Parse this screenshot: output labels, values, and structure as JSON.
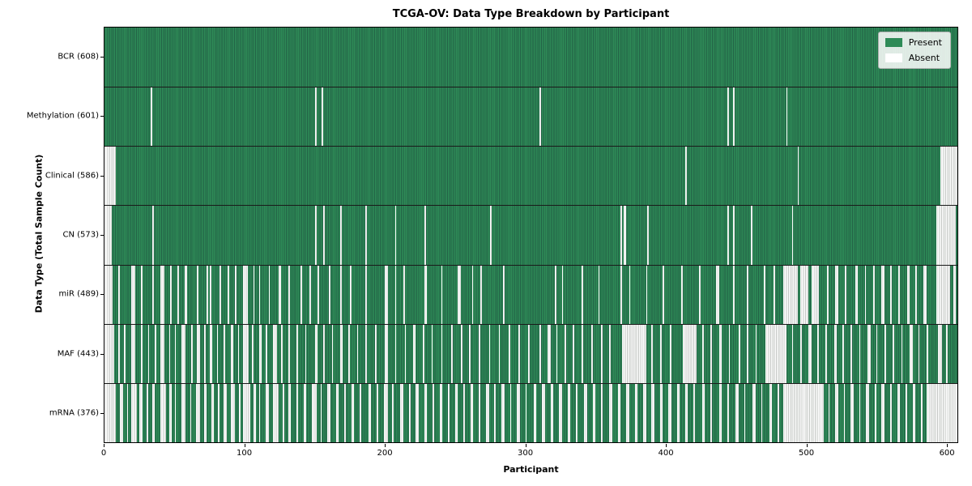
{
  "chart_data": {
    "type": "heatmap",
    "title": "TCGA-OV: Data Type Breakdown by Participant",
    "xlabel": "Participant",
    "ylabel": "Data Type (Total Sample Count)",
    "x_ticks": [
      0,
      100,
      200,
      300,
      400,
      500,
      600
    ],
    "xlim": [
      0,
      608
    ],
    "n_participants": 608,
    "legend": [
      {
        "label": "Present",
        "color": "#2e8b57"
      },
      {
        "label": "Absent",
        "color": "#ffffff"
      }
    ],
    "colors": {
      "present": "#2e8b57",
      "present_edge": "#226246",
      "absent": "#fcfcfc",
      "absent_edge": "#c4c7c4",
      "row_separator": "#1a1a1a"
    },
    "rows": [
      {
        "label": "BCR (608)",
        "data_type": "BCR",
        "present_count": 608,
        "absent_count": 0,
        "absent_ranges": []
      },
      {
        "label": "Methylation (601)",
        "data_type": "Methylation",
        "present_count": 601,
        "absent_count": 7,
        "absent_ranges": [
          [
            33,
            1
          ],
          [
            150,
            1
          ],
          [
            155,
            1
          ],
          [
            310,
            1
          ],
          [
            444,
            1
          ],
          [
            448,
            1
          ],
          [
            486,
            1
          ]
        ]
      },
      {
        "label": "Clinical (586)",
        "data_type": "Clinical",
        "present_count": 586,
        "absent_count": 22,
        "absent_ranges": [
          [
            0,
            8
          ],
          [
            414,
            1
          ],
          [
            494,
            1
          ],
          [
            596,
            12
          ]
        ]
      },
      {
        "label": "CN (573)",
        "data_type": "CN",
        "present_count": 573,
        "absent_count": 35,
        "absent_ranges": [
          [
            0,
            5
          ],
          [
            34,
            1
          ],
          [
            150,
            1
          ],
          [
            156,
            1
          ],
          [
            168,
            1
          ],
          [
            186,
            1
          ],
          [
            207,
            1
          ],
          [
            228,
            1
          ],
          [
            275,
            1
          ],
          [
            368,
            1
          ],
          [
            370,
            2
          ],
          [
            387,
            1
          ],
          [
            444,
            1
          ],
          [
            448,
            1
          ],
          [
            461,
            1
          ],
          [
            490,
            1
          ],
          [
            593,
            14
          ]
        ]
      },
      {
        "label": "miR (489)",
        "data_type": "miR",
        "present_count": 489,
        "absent_count": 119,
        "absent_ranges": [
          [
            0,
            6
          ],
          [
            10,
            1
          ],
          [
            19,
            3
          ],
          [
            26,
            1
          ],
          [
            34,
            1
          ],
          [
            40,
            3
          ],
          [
            47,
            1
          ],
          [
            52,
            1
          ],
          [
            57,
            2
          ],
          [
            66,
            1
          ],
          [
            73,
            1
          ],
          [
            75,
            1
          ],
          [
            82,
            1
          ],
          [
            88,
            1
          ],
          [
            93,
            1
          ],
          [
            99,
            3
          ],
          [
            106,
            1
          ],
          [
            110,
            1
          ],
          [
            117,
            1
          ],
          [
            124,
            2
          ],
          [
            131,
            1
          ],
          [
            140,
            1
          ],
          [
            146,
            1
          ],
          [
            152,
            1
          ],
          [
            160,
            1
          ],
          [
            168,
            1
          ],
          [
            175,
            1
          ],
          [
            186,
            1
          ],
          [
            200,
            2
          ],
          [
            207,
            1
          ],
          [
            213,
            1
          ],
          [
            228,
            2
          ],
          [
            240,
            1
          ],
          [
            252,
            2
          ],
          [
            262,
            1
          ],
          [
            268,
            1
          ],
          [
            284,
            1
          ],
          [
            321,
            1
          ],
          [
            326,
            1
          ],
          [
            340,
            1
          ],
          [
            352,
            1
          ],
          [
            368,
            1
          ],
          [
            374,
            1
          ],
          [
            386,
            1
          ],
          [
            398,
            1
          ],
          [
            411,
            1
          ],
          [
            424,
            1
          ],
          [
            436,
            2
          ],
          [
            448,
            1
          ],
          [
            458,
            1
          ],
          [
            470,
            1
          ],
          [
            477,
            1
          ],
          [
            484,
            10
          ],
          [
            496,
            6
          ],
          [
            504,
            5
          ],
          [
            515,
            1
          ],
          [
            521,
            2
          ],
          [
            528,
            1
          ],
          [
            535,
            2
          ],
          [
            542,
            1
          ],
          [
            548,
            1
          ],
          [
            554,
            2
          ],
          [
            560,
            1
          ],
          [
            566,
            1
          ],
          [
            572,
            2
          ],
          [
            578,
            1
          ],
          [
            584,
            2
          ],
          [
            593,
            10
          ],
          [
            605,
            2
          ]
        ]
      },
      {
        "label": "MAF (443)",
        "data_type": "MAF",
        "present_count": 443,
        "absent_count": 165,
        "absent_ranges": [
          [
            0,
            7
          ],
          [
            10,
            1
          ],
          [
            14,
            1
          ],
          [
            19,
            3
          ],
          [
            26,
            1
          ],
          [
            31,
            1
          ],
          [
            36,
            1
          ],
          [
            40,
            3
          ],
          [
            46,
            1
          ],
          [
            50,
            1
          ],
          [
            55,
            3
          ],
          [
            62,
            1
          ],
          [
            66,
            2
          ],
          [
            71,
            1
          ],
          [
            75,
            2
          ],
          [
            80,
            1
          ],
          [
            85,
            1
          ],
          [
            90,
            2
          ],
          [
            95,
            1
          ],
          [
            99,
            4
          ],
          [
            105,
            1
          ],
          [
            110,
            2
          ],
          [
            115,
            1
          ],
          [
            120,
            3
          ],
          [
            126,
            1
          ],
          [
            131,
            1
          ],
          [
            137,
            1
          ],
          [
            143,
            1
          ],
          [
            150,
            2
          ],
          [
            156,
            1
          ],
          [
            162,
            1
          ],
          [
            168,
            2
          ],
          [
            174,
            1
          ],
          [
            180,
            1
          ],
          [
            186,
            1
          ],
          [
            193,
            1
          ],
          [
            200,
            2
          ],
          [
            207,
            1
          ],
          [
            214,
            1
          ],
          [
            220,
            2
          ],
          [
            227,
            1
          ],
          [
            233,
            1
          ],
          [
            240,
            1
          ],
          [
            247,
            1
          ],
          [
            254,
            1
          ],
          [
            260,
            1
          ],
          [
            267,
            1
          ],
          [
            274,
            1
          ],
          [
            281,
            1
          ],
          [
            288,
            1
          ],
          [
            295,
            1
          ],
          [
            302,
            1
          ],
          [
            310,
            1
          ],
          [
            316,
            2
          ],
          [
            322,
            1
          ],
          [
            328,
            1
          ],
          [
            334,
            1
          ],
          [
            340,
            1
          ],
          [
            347,
            1
          ],
          [
            354,
            1
          ],
          [
            360,
            1
          ],
          [
            369,
            17
          ],
          [
            390,
            1
          ],
          [
            396,
            1
          ],
          [
            403,
            1
          ],
          [
            412,
            10
          ],
          [
            426,
            1
          ],
          [
            432,
            1
          ],
          [
            438,
            2
          ],
          [
            445,
            1
          ],
          [
            452,
            1
          ],
          [
            458,
            1
          ],
          [
            464,
            1
          ],
          [
            471,
            15
          ],
          [
            490,
            1
          ],
          [
            496,
            1
          ],
          [
            502,
            2
          ],
          [
            508,
            1
          ],
          [
            514,
            1
          ],
          [
            520,
            2
          ],
          [
            526,
            1
          ],
          [
            532,
            1
          ],
          [
            538,
            1
          ],
          [
            544,
            2
          ],
          [
            550,
            1
          ],
          [
            556,
            1
          ],
          [
            562,
            1
          ],
          [
            568,
            1
          ],
          [
            574,
            2
          ],
          [
            580,
            1
          ],
          [
            586,
            1
          ],
          [
            594,
            3
          ],
          [
            600,
            1
          ]
        ]
      },
      {
        "label": "mRNA (376)",
        "data_type": "mRNA",
        "present_count": 376,
        "absent_count": 232,
        "absent_ranges": [
          [
            0,
            8
          ],
          [
            11,
            2
          ],
          [
            16,
            1
          ],
          [
            19,
            4
          ],
          [
            25,
            2
          ],
          [
            30,
            1
          ],
          [
            34,
            2
          ],
          [
            40,
            4
          ],
          [
            46,
            2
          ],
          [
            50,
            1
          ],
          [
            55,
            3
          ],
          [
            61,
            1
          ],
          [
            65,
            3
          ],
          [
            71,
            2
          ],
          [
            76,
            2
          ],
          [
            81,
            1
          ],
          [
            85,
            2
          ],
          [
            90,
            3
          ],
          [
            96,
            1
          ],
          [
            99,
            5
          ],
          [
            106,
            2
          ],
          [
            110,
            1
          ],
          [
            115,
            2
          ],
          [
            120,
            4
          ],
          [
            127,
            1
          ],
          [
            131,
            2
          ],
          [
            137,
            1
          ],
          [
            142,
            2
          ],
          [
            148,
            3
          ],
          [
            154,
            1
          ],
          [
            159,
            2
          ],
          [
            165,
            2
          ],
          [
            171,
            1
          ],
          [
            176,
            2
          ],
          [
            182,
            1
          ],
          [
            188,
            2
          ],
          [
            194,
            1
          ],
          [
            199,
            3
          ],
          [
            205,
            1
          ],
          [
            211,
            2
          ],
          [
            217,
            1
          ],
          [
            222,
            2
          ],
          [
            228,
            2
          ],
          [
            234,
            1
          ],
          [
            239,
            2
          ],
          [
            245,
            1
          ],
          [
            250,
            2
          ],
          [
            256,
            1
          ],
          [
            261,
            2
          ],
          [
            267,
            1
          ],
          [
            272,
            2
          ],
          [
            278,
            1
          ],
          [
            283,
            2
          ],
          [
            289,
            1
          ],
          [
            294,
            2
          ],
          [
            300,
            1
          ],
          [
            306,
            2
          ],
          [
            312,
            2
          ],
          [
            318,
            2
          ],
          [
            324,
            2
          ],
          [
            330,
            2
          ],
          [
            336,
            1
          ],
          [
            342,
            2
          ],
          [
            348,
            2
          ],
          [
            354,
            1
          ],
          [
            360,
            2
          ],
          [
            366,
            2
          ],
          [
            372,
            2
          ],
          [
            378,
            2
          ],
          [
            384,
            2
          ],
          [
            390,
            2
          ],
          [
            396,
            2
          ],
          [
            402,
            2
          ],
          [
            408,
            2
          ],
          [
            414,
            2
          ],
          [
            420,
            1
          ],
          [
            426,
            2
          ],
          [
            432,
            1
          ],
          [
            438,
            2
          ],
          [
            444,
            1
          ],
          [
            450,
            2
          ],
          [
            456,
            1
          ],
          [
            462,
            2
          ],
          [
            468,
            1
          ],
          [
            474,
            2
          ],
          [
            480,
            1
          ],
          [
            484,
            29
          ],
          [
            516,
            1
          ],
          [
            521,
            2
          ],
          [
            527,
            1
          ],
          [
            532,
            2
          ],
          [
            538,
            1
          ],
          [
            543,
            2
          ],
          [
            549,
            1
          ],
          [
            554,
            2
          ],
          [
            560,
            1
          ],
          [
            565,
            2
          ],
          [
            571,
            1
          ],
          [
            576,
            2
          ],
          [
            582,
            1
          ],
          [
            586,
            21
          ],
          [
            607,
            1
          ]
        ]
      }
    ]
  }
}
